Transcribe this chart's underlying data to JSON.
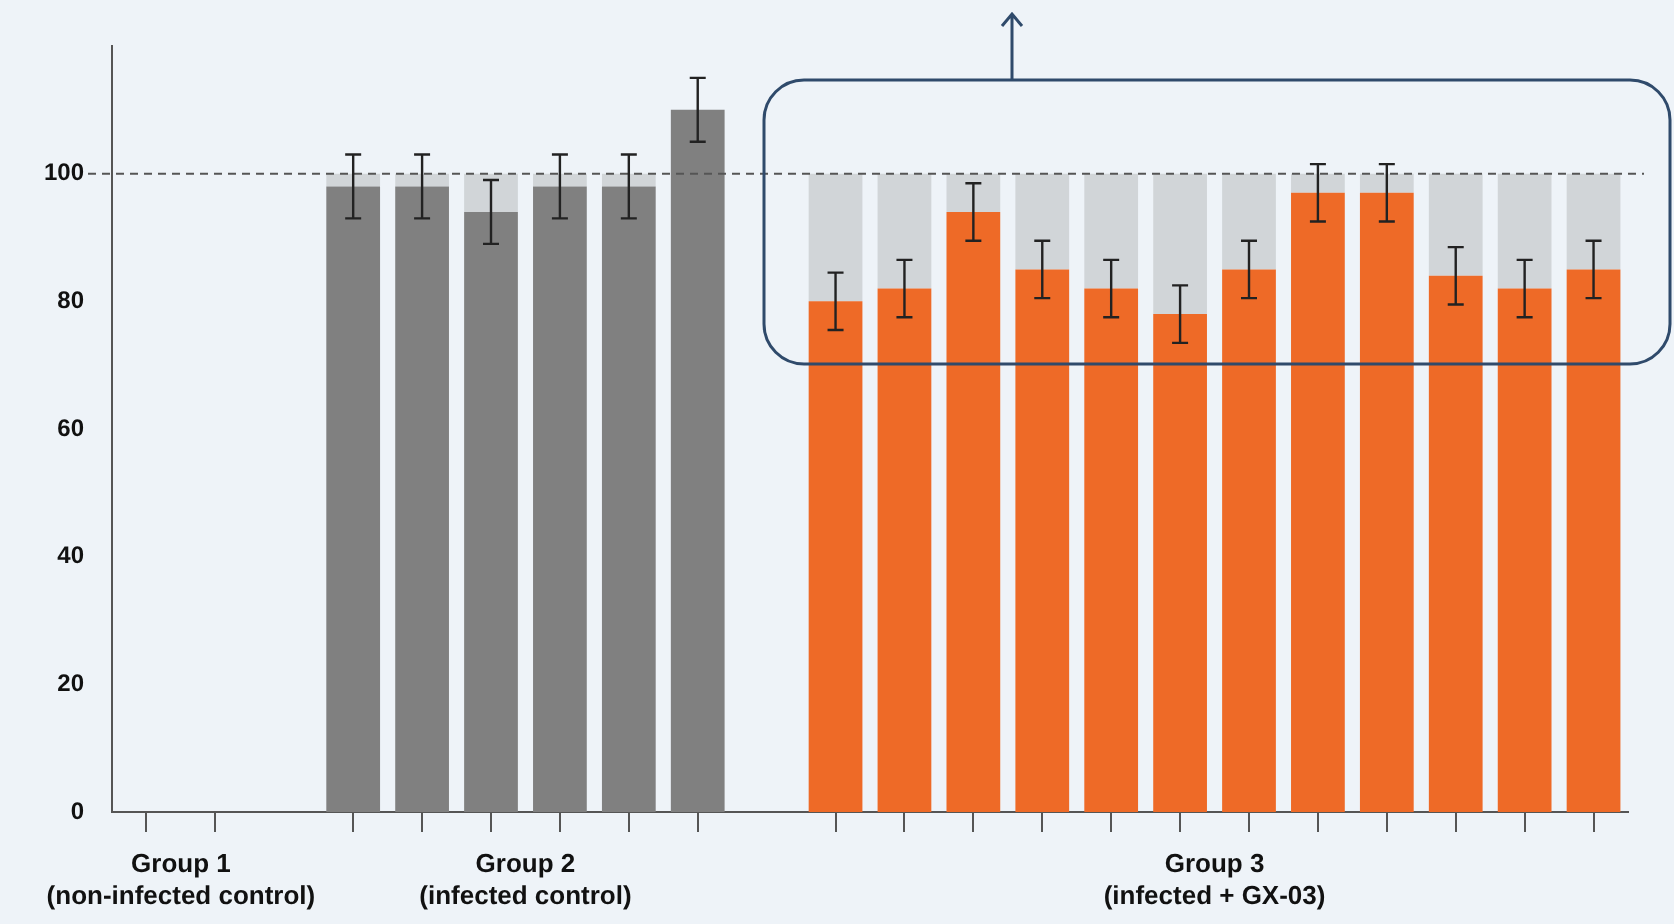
{
  "chart_data": {
    "type": "bar",
    "stacked": true,
    "legend": false,
    "grid": false,
    "categories": [
      null,
      null,
      null,
      null,
      null,
      null,
      null,
      null,
      null,
      null,
      null,
      null,
      null,
      null,
      null,
      null,
      null,
      null,
      null,
      null,
      null,
      null
    ],
    "series": [
      {
        "color": "#808080",
        "colors": [
          "#808080",
          "#808080",
          null,
          "#808080",
          "#808080",
          "#808080",
          "#808080",
          "#808080",
          "#808080",
          null,
          "#ee6a27",
          "#ee6a27",
          "#ee6a27",
          "#ee6a27",
          "#ee6a27",
          "#ee6a27",
          "#ee6a27",
          "#ee6a27",
          "#ee6a27",
          "#ee6a27",
          "#ee6a27",
          "#ee6a27"
        ],
        "values": [
          0,
          0,
          null,
          98,
          98,
          94,
          98,
          98,
          110,
          null,
          80,
          82,
          94,
          85,
          82,
          78,
          85,
          97,
          97,
          84,
          82,
          85
        ],
        "errors": [
          null,
          null,
          null,
          5,
          5,
          5,
          5,
          5,
          5,
          null,
          4.5,
          4.5,
          4.5,
          4.5,
          4.5,
          4.5,
          4.5,
          4.5,
          4.5,
          4.5,
          4.5,
          4.5
        ]
      },
      {
        "color": "#d1d5d8",
        "values": [
          null,
          null,
          null,
          2,
          2,
          6,
          2,
          2,
          null,
          null,
          20,
          18,
          6,
          15,
          18,
          22,
          15,
          3,
          3,
          16,
          18,
          15
        ]
      }
    ],
    "ylim": [
      0,
      120
    ],
    "yticks": [
      0,
      20,
      40,
      60,
      80,
      100
    ],
    "ref_lines": [
      {
        "axis": "y",
        "value": 100,
        "color": "#555555",
        "line_style": "dashed"
      }
    ],
    "annotations": [
      "Group 1\n(non-infected control)",
      "Group 2\n(infected control)",
      "Group 3\n(infected + GX-03)"
    ]
  }
}
